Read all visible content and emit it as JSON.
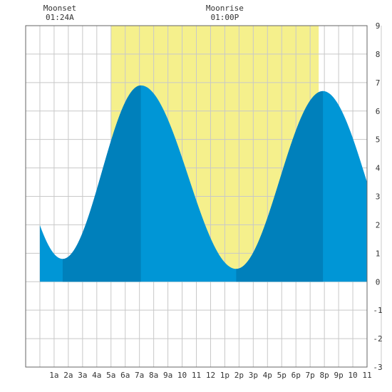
{
  "header": {
    "moonset": {
      "label": "Moonset",
      "time": "01:24A"
    },
    "moonrise": {
      "label": "Moonrise",
      "time": "01:00P"
    }
  },
  "colors": {
    "daylight": "#f5f08c",
    "tide_fill": "#0096d6",
    "tide_fill_dark": "#0080bb",
    "grid": "#c8c8c8",
    "border": "#666666",
    "background": "#ffffff"
  },
  "chart_data": {
    "type": "area",
    "x_unit": "hour",
    "xlim": [
      0,
      23
    ],
    "ylim": [
      -3,
      9
    ],
    "grid": true,
    "x_tick_labels": [
      "1a",
      "2a",
      "3a",
      "4a",
      "5a",
      "6a",
      "7a",
      "8a",
      "9a",
      "10",
      "11",
      "12",
      "1p",
      "2p",
      "3p",
      "4p",
      "5p",
      "6p",
      "7p",
      "8p",
      "9p",
      "10",
      "11"
    ],
    "y_ticks": [
      -3,
      -2,
      -1,
      0,
      1,
      2,
      3,
      4,
      5,
      6,
      7,
      8,
      9
    ],
    "daylight": {
      "start": 5.0,
      "end": 19.6
    },
    "moon_events": {
      "moonset": 1.4,
      "moonrise": 13.0
    },
    "tide_extremes": [
      {
        "x": 1.6,
        "y": 0.8,
        "kind": "low"
      },
      {
        "x": 7.1,
        "y": 6.9,
        "kind": "high"
      },
      {
        "x": 13.8,
        "y": 0.45,
        "kind": "low"
      },
      {
        "x": 19.9,
        "y": 6.7,
        "kind": "high"
      }
    ],
    "tide_start_value": 1.55,
    "tide_end_value": 2.7,
    "dark_bands": [
      [
        1.6,
        7.1
      ],
      [
        13.8,
        19.9
      ]
    ]
  }
}
